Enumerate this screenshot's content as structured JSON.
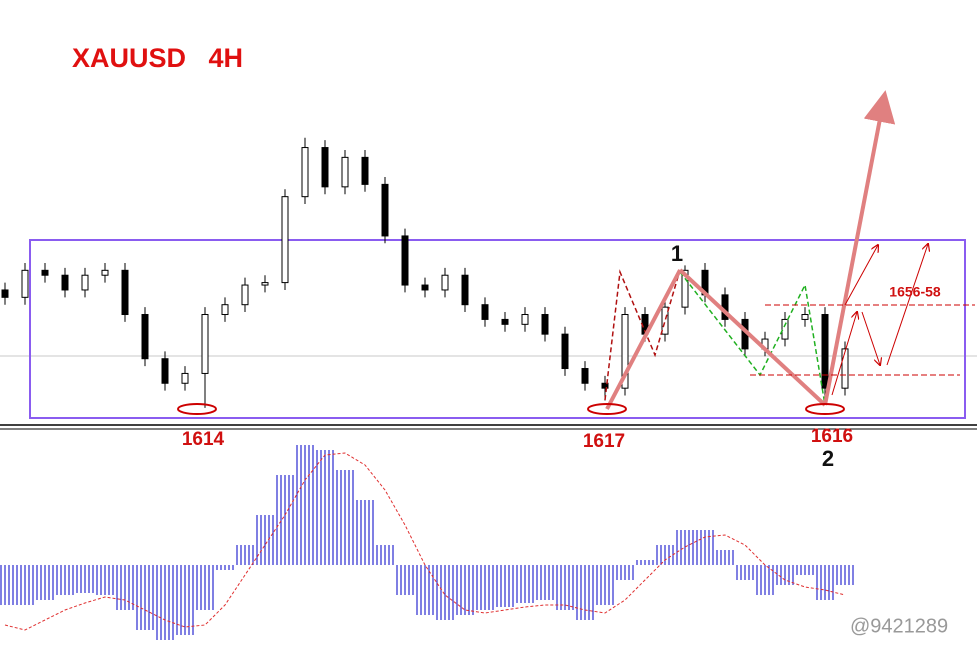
{
  "chart_data": [
    {
      "type": "candlestick",
      "title": "XAUUSD   4H",
      "open": [
        1662,
        1659,
        1670,
        1668,
        1662,
        1668,
        1670,
        1652,
        1634,
        1624,
        1628,
        1652,
        1656,
        1664,
        1665,
        1700,
        1720,
        1704,
        1716,
        1705,
        1684,
        1664,
        1662,
        1668,
        1656,
        1650,
        1648,
        1652,
        1644,
        1630,
        1624,
        1622,
        1652,
        1644,
        1655,
        1670,
        1660,
        1650,
        1638,
        1642,
        1650,
        1652,
        1622
      ],
      "high": [
        1665,
        1673,
        1673,
        1671,
        1671,
        1673,
        1673,
        1655,
        1637,
        1631,
        1655,
        1659,
        1667,
        1668,
        1703,
        1724,
        1723,
        1719,
        1719,
        1708,
        1687,
        1667,
        1671,
        1671,
        1659,
        1653,
        1655,
        1655,
        1647,
        1633,
        1627,
        1655,
        1655,
        1658,
        1672,
        1673,
        1663,
        1653,
        1645,
        1653,
        1655,
        1655,
        1641
      ],
      "low": [
        1656,
        1656,
        1665,
        1659,
        1659,
        1665,
        1649,
        1631,
        1621,
        1621,
        1614,
        1649,
        1653,
        1661,
        1662,
        1697,
        1701,
        1701,
        1702,
        1681,
        1661,
        1659,
        1659,
        1653,
        1647,
        1645,
        1645,
        1641,
        1627,
        1621,
        1617,
        1619,
        1641,
        1641,
        1652,
        1657,
        1647,
        1635,
        1635,
        1639,
        1647,
        1616,
        1619
      ],
      "close": [
        1659,
        1670,
        1668,
        1662,
        1668,
        1670,
        1652,
        1634,
        1624,
        1628,
        1652,
        1656,
        1664,
        1665,
        1700,
        1720,
        1704,
        1716,
        1705,
        1684,
        1664,
        1662,
        1668,
        1656,
        1650,
        1648,
        1652,
        1644,
        1630,
        1624,
        1622,
        1652,
        1644,
        1655,
        1670,
        1660,
        1650,
        1638,
        1642,
        1650,
        1652,
        1622,
        1638
      ],
      "ylim": [
        1607,
        1730
      ],
      "annotations": [
        "1614",
        "1617",
        "1616",
        "1",
        "2",
        "1656-58"
      ]
    },
    {
      "type": "bar",
      "values": [
        -40,
        -40,
        -35,
        -30,
        -28,
        -30,
        -45,
        -65,
        -75,
        -70,
        -45,
        -5,
        20,
        50,
        90,
        120,
        115,
        95,
        65,
        20,
        -30,
        -50,
        -55,
        -50,
        -45,
        -42,
        -38,
        -35,
        -45,
        -55,
        -40,
        -15,
        5,
        20,
        35,
        35,
        15,
        -15,
        -30,
        -20,
        -10,
        -35,
        -20
      ],
      "signal": [
        -60,
        -65,
        -55,
        -45,
        -38,
        -32,
        -35,
        -45,
        -55,
        -62,
        -60,
        -40,
        -10,
        20,
        50,
        85,
        110,
        112,
        100,
        75,
        40,
        0,
        -30,
        -45,
        -48,
        -45,
        -42,
        -40,
        -40,
        -45,
        -48,
        -35,
        -15,
        5,
        18,
        28,
        30,
        20,
        0,
        -15,
        -22,
        -25,
        -30
      ],
      "color": "#2a2ad0",
      "signal_color": "#e03030",
      "ylim": [
        -80,
        125
      ]
    }
  ],
  "watermark": "@9421289"
}
